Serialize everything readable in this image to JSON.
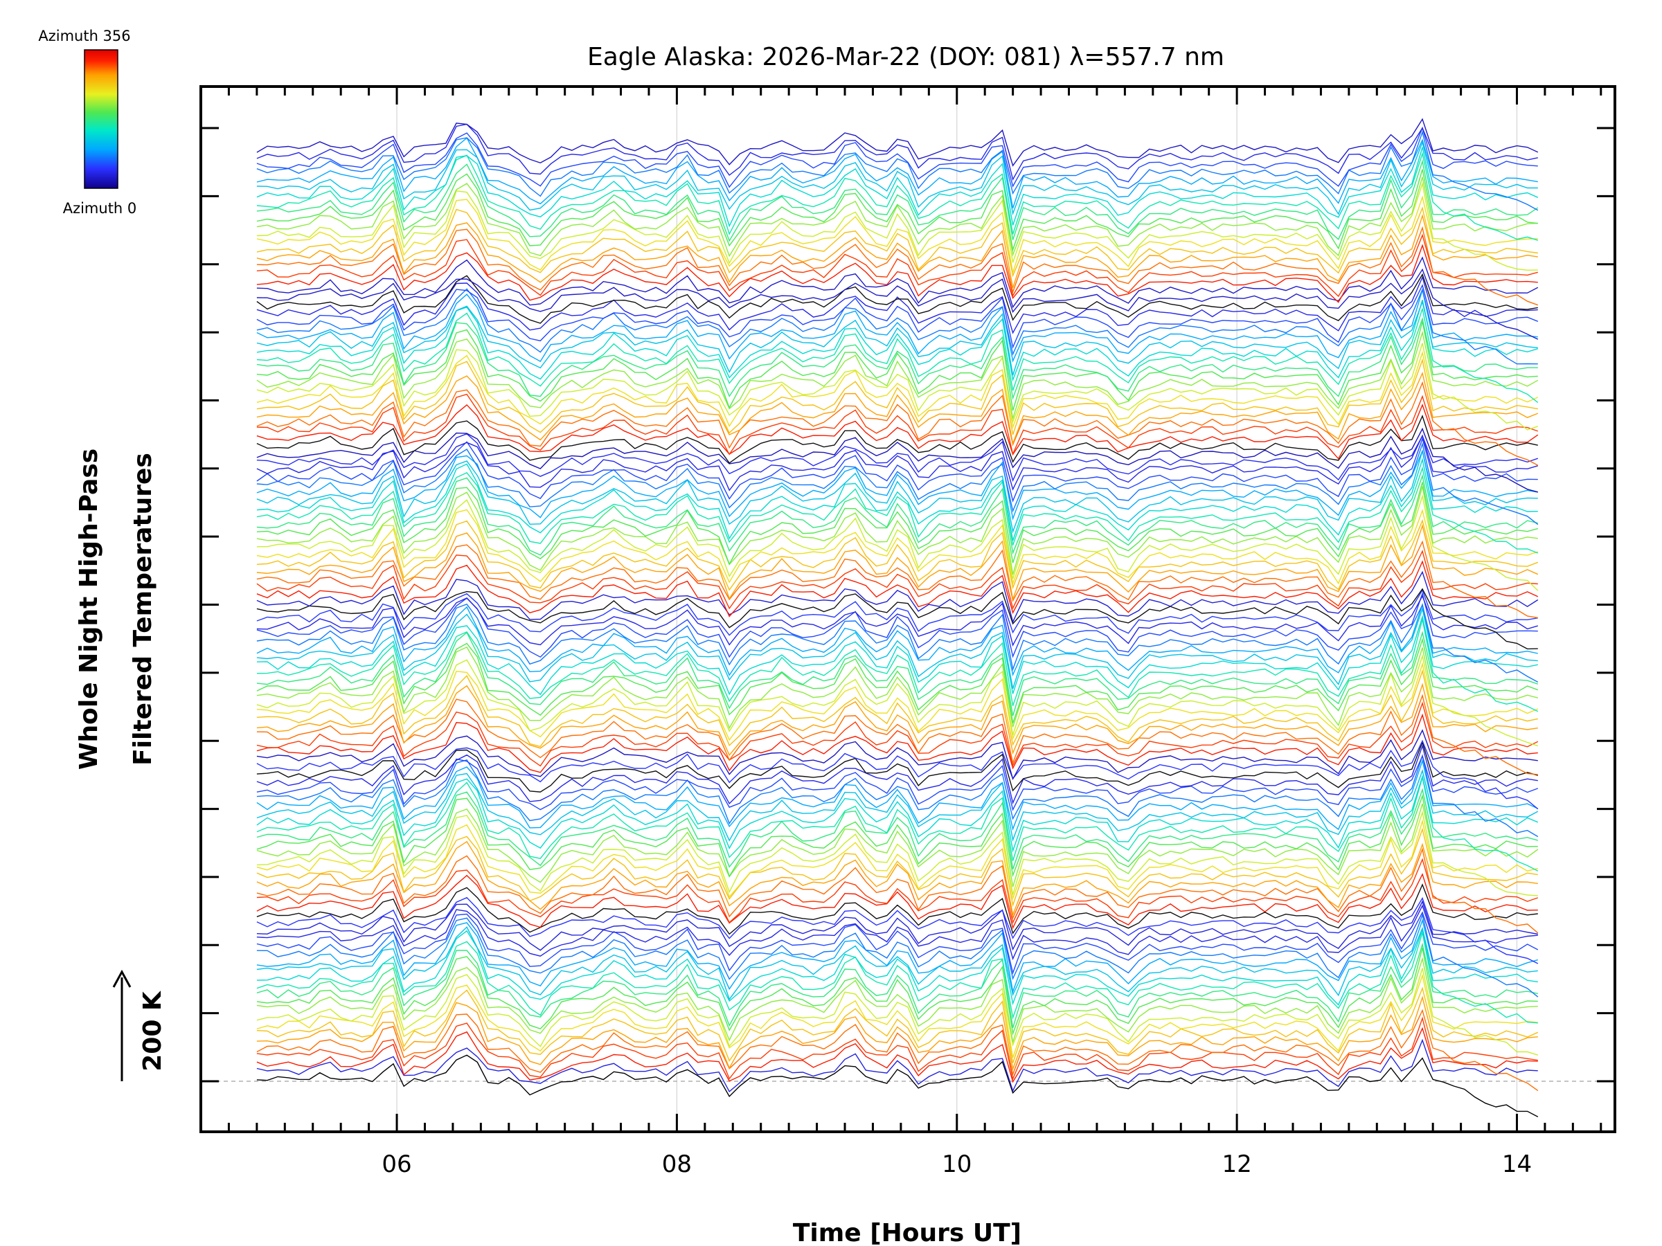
{
  "chart_data": {
    "type": "line",
    "title": "Eagle Alaska: 2026-Mar-22 (DOY: 081) λ=557.7 nm",
    "xlabel": "Time [Hours UT]",
    "ylabel_line1": "Whole Night High-Pass",
    "ylabel_line2": "Filtered Temperatures",
    "xlim": [
      4.6,
      14.7
    ],
    "x_ticks": [
      6,
      8,
      10,
      12,
      14
    ],
    "x_tick_labels": [
      "06",
      "08",
      "10",
      "12",
      "14"
    ],
    "x_range_data": [
      5.0,
      14.2
    ],
    "scale_bar_label": "200 K",
    "colorbar": {
      "top_label": "Azimuth 356",
      "bottom_label": "Azimuth 0",
      "azimuth_min": 0,
      "azimuth_max": 356,
      "colors": [
        "#10008c",
        "#2a30ff",
        "#00a8ff",
        "#00e8c8",
        "#50e850",
        "#e8f020",
        "#ffa000",
        "#ff2000",
        "#e00000"
      ]
    },
    "series_count": 120,
    "stack_groups": 6,
    "baseline_azimuth": 0,
    "grid": true
  }
}
